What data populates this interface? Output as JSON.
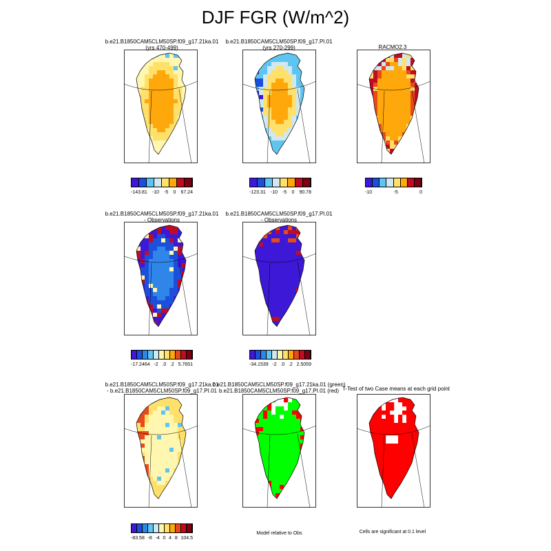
{
  "title": "DJF FGR (W/m^2)",
  "palettes": {
    "diverging": [
      "#3d18d6",
      "#1b4fdc",
      "#2f86e8",
      "#5ec4f0",
      "#cfe8f2",
      "#fff7b0",
      "#ffe06a",
      "#ffa80c",
      "#e84a1a",
      "#c00c22",
      "#7a0012"
    ],
    "diff_green": "#00ff00",
    "diff_red": "#ff0000",
    "significant": "#ff0000",
    "coast": "#000000"
  },
  "panels": [
    {
      "id": "p1",
      "title_lines": [
        "b.e21.B1850CAM5CLM50SP.f09_g17.21ka.01",
        "(yrs 470-499)"
      ],
      "style": "model_ka"
    },
    {
      "id": "p2",
      "title_lines": [
        "b.e21.B1850CAM5CLM50SP.f09_g17.PI.01",
        "(yrs 270-299)"
      ],
      "style": "model_pi"
    },
    {
      "id": "p3",
      "title_lines": [
        "RACMO2.3"
      ],
      "style": "obs"
    },
    {
      "id": "p4",
      "title_lines": [
        "b.e21.B1850CAM5CLM50SP.f09_g17.21ka.01",
        "- Observations"
      ],
      "style": "bias_ka"
    },
    {
      "id": "p5",
      "title_lines": [
        "b.e21.B1850CAM5CLM50SP.f09_g17.PI.01",
        "- Observations"
      ],
      "style": "bias_pi"
    },
    {
      "id": "p6",
      "title_lines": [
        "b.e21.B1850CAM5CLM50SP.f09_g17.21ka.01",
        "- b.e21.B1850CAM5CLM50SP.f09_g17.PI.01"
      ],
      "style": "diff"
    },
    {
      "id": "p7",
      "title_lines": [
        "b.e21.B1850CAM5CLM50SP.f09_g17.21ka.01 (green)",
        "b.e21.B1850CAM5CLM50SP.f09_g17.PI.01 (red)"
      ],
      "style": "relative"
    },
    {
      "id": "p8",
      "title_lines": [
        "T-Test of two Case means at each grid point"
      ],
      "style": "ttest"
    }
  ],
  "colorbars": {
    "cb1": {
      "labels": [
        "-143.81",
        "-10",
        "-5",
        "0",
        "67.24"
      ]
    },
    "cb2": {
      "labels": [
        "-123.31",
        "-10",
        "-5",
        "0",
        "90.78"
      ]
    },
    "cb3": {
      "labels": [
        "-10",
        "-5",
        "0"
      ]
    },
    "cb4": {
      "labels": [
        "-17.2464",
        "-2",
        ".0",
        ".2",
        "5.7651"
      ]
    },
    "cb5": {
      "labels": [
        "-34.1539",
        "-2",
        ".0",
        ".2",
        "2.5059"
      ]
    },
    "cb6": {
      "labels": [
        "-83.58",
        "-8",
        "-4",
        "0",
        "4",
        "8",
        "104.5"
      ]
    }
  },
  "notes": {
    "relative": "Model relative to Obs",
    "significance": "Cells are significant at 0.1 level"
  }
}
